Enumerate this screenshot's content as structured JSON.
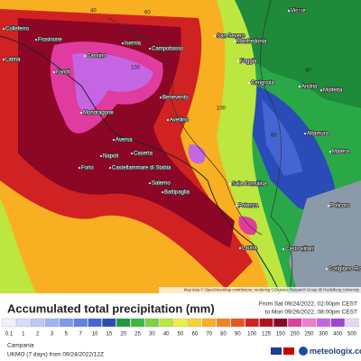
{
  "map": {
    "places": [
      "Colleferro",
      "Frosinone",
      "Latina",
      "Fondi",
      "Cassino",
      "Isernia",
      "Campobasso",
      "San Severo",
      "Vieste",
      "Manfredonia",
      "Foggia",
      "Cerignola",
      "Andria",
      "Molfetta",
      "Mondragone",
      "Caserta",
      "Benevento",
      "Avellino",
      "Aversa",
      "Napoli",
      "Castellammare di Stabia",
      "Forio",
      "Salerno",
      "Battipaglia",
      "Potenza",
      "Altamura",
      "Matera",
      "Sala Consilina",
      "Lauria",
      "Castrovillari",
      "Policoro",
      "Corigliano-Rossano"
    ],
    "contour_labels": [
      "40",
      "60",
      "100",
      "40",
      "60",
      "100",
      "40"
    ],
    "attribution": "Map data © OpenStreetMap contributors, rendering GIScience Research Group @ Heidelberg University"
  },
  "legend": {
    "title": "Accumulated total precipitation (mm)",
    "from": "From Sat 09/24/2022, 02:00pm CEST",
    "to": "to Mon 09/26/2022, 08:00pm CEST",
    "ticks": [
      0.1,
      1,
      2,
      3,
      5,
      7,
      10,
      15,
      20,
      25,
      30,
      40,
      50,
      60,
      70,
      80,
      90,
      100,
      125,
      150,
      200,
      250,
      300,
      400,
      500
    ],
    "colors": [
      "#eef0fa",
      "#d6dcfa",
      "#bcc8f6",
      "#a0b2f0",
      "#8098e8",
      "#6480e0",
      "#4466d4",
      "#2a4cb8",
      "#1e9a3c",
      "#3cb83c",
      "#7cd440",
      "#bce640",
      "#eef040",
      "#f8d230",
      "#f8b022",
      "#f08422",
      "#e65422",
      "#d02222",
      "#b01222",
      "#8c0626",
      "#e03ca0",
      "#f07ccc",
      "#c466e4",
      "#a044d0",
      "#e6d6f0"
    ]
  },
  "footer": {
    "region": "Campania",
    "model": "UKMO (7 days) from 09/24/2022/12Z",
    "brand": "meteologix.com"
  }
}
